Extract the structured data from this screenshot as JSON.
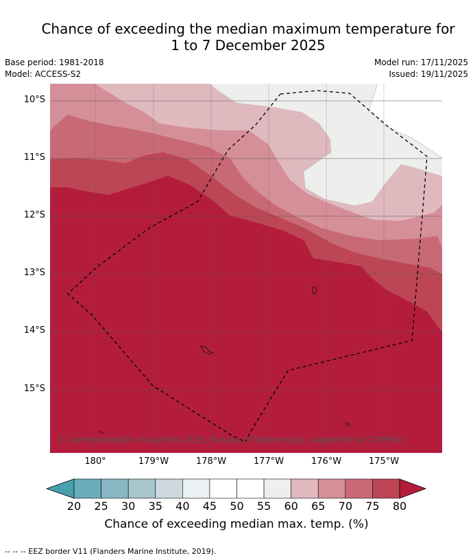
{
  "title": "Chance of exceeding the median maximum temperature for\n1 to 7 December 2025",
  "meta": {
    "base_period": "Base period: 1981-2018",
    "model": "Model: ACCESS-S2",
    "model_run": "Model run: 17/11/2025",
    "issued": "Issued: 19/11/2025"
  },
  "map": {
    "lat_labels": [
      "10°S",
      "11°S",
      "12°S",
      "13°S",
      "14°S",
      "15°S"
    ],
    "lon_labels": [
      "180°",
      "179°W",
      "178°W",
      "177°W",
      "176°W",
      "175°W"
    ],
    "copyright": "© Commonwealth of Australia 2025, Bureau of Meteorology, supported by COSPPac",
    "band_colors": {
      "c55_60": "#eeeeec",
      "c60_65": "#e0b9bf",
      "c65_70": "#d58f98",
      "c70_75": "#c86a76",
      "c75_80": "#bd4655",
      "c80_up": "#b31d3b"
    }
  },
  "colorbar": {
    "ticks": [
      "20",
      "25",
      "30",
      "35",
      "40",
      "45",
      "50",
      "55",
      "60",
      "65",
      "70",
      "75",
      "80"
    ],
    "colors": [
      "#6aaebb",
      "#88b6c3",
      "#a8c6cc",
      "#ccd8de",
      "#eaf0f3",
      "#ffffff",
      "#ffffff",
      "#eeeeec",
      "#e0b9bf",
      "#d58f98",
      "#c86a76",
      "#bd4655"
    ],
    "under_color": "#4a9fae",
    "over_color": "#b31d3b",
    "title": "Chance of exceeding median max. temp. (%)"
  },
  "footnote": "--  --  -- EEZ border V11 (Flanders Marine Institute, 2019)."
}
